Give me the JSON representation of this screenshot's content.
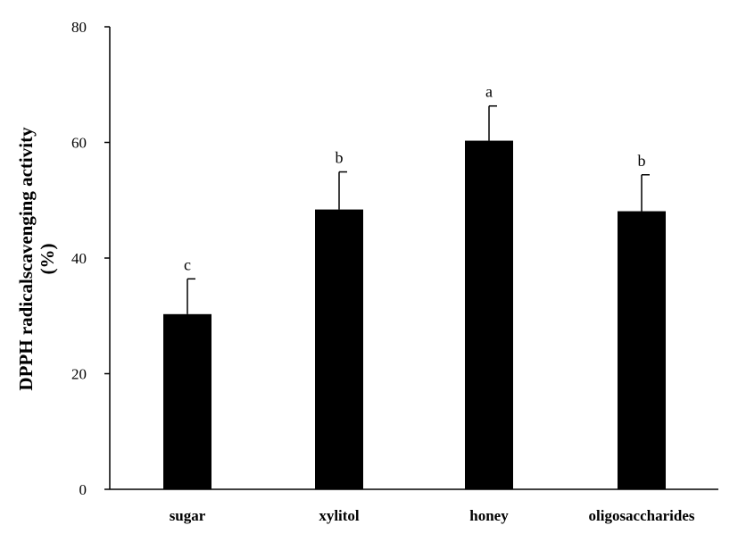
{
  "chart_data": {
    "type": "bar",
    "title": "",
    "xlabel": "",
    "ylabel": "DPPH radicalscavenging activity",
    "ylabel_unit": "(%)",
    "ylim": [
      0,
      80
    ],
    "yticks": [
      0,
      20,
      40,
      60,
      80
    ],
    "categories": [
      "sugar",
      "xylitol",
      "honey",
      "oligosaccharides"
    ],
    "values": [
      30.3,
      48.4,
      60.3,
      48.1
    ],
    "error": [
      6.1,
      6.5,
      6.0,
      6.3
    ],
    "significance": [
      "c",
      "b",
      "a",
      "b"
    ],
    "bar_color": "#000000",
    "grid": false,
    "legend": "none"
  }
}
